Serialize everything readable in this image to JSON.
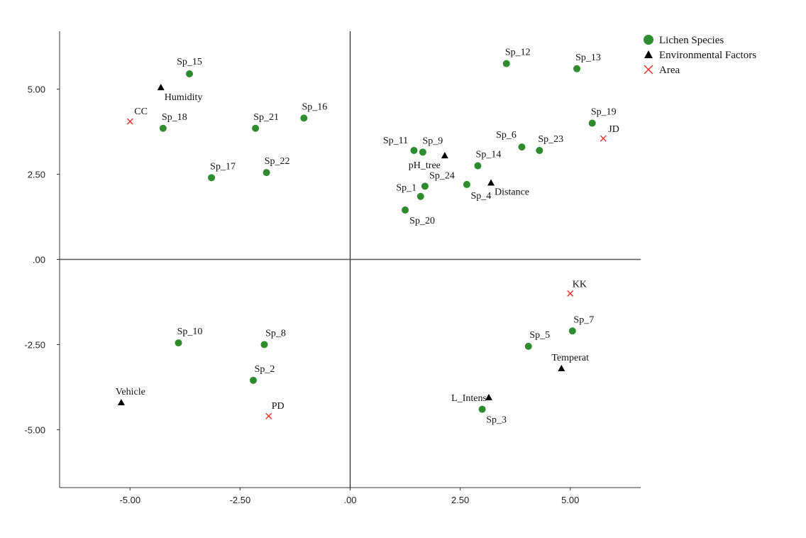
{
  "chart_data": {
    "type": "scatter",
    "title": "",
    "xlabel": "",
    "ylabel": "",
    "xlim": [
      -6.6,
      6.6
    ],
    "ylim": [
      -6.7,
      6.7
    ],
    "grid": false,
    "reference_lines": {
      "x": 0,
      "y": 0
    },
    "x_ticks": [
      {
        "value": -5,
        "label": "-5.00"
      },
      {
        "value": -2.5,
        "label": "-2.50"
      },
      {
        "value": 0,
        "label": ".00"
      },
      {
        "value": 2.5,
        "label": "2.50"
      },
      {
        "value": 5,
        "label": "5.00"
      }
    ],
    "y_ticks": [
      {
        "value": 5,
        "label": "5.00"
      },
      {
        "value": 2.5,
        "label": "2.50"
      },
      {
        "value": 0,
        "label": ".00"
      },
      {
        "value": -2.5,
        "label": "-2.50"
      },
      {
        "value": -5,
        "label": "-5.00"
      }
    ],
    "legend_position": "top-right",
    "series": [
      {
        "name": "Lichen Species",
        "marker": "circle",
        "color": "#2e8b2e",
        "points": [
          {
            "label": "Sp_15",
            "x": -3.65,
            "y": 5.45
          },
          {
            "label": "Sp_18",
            "x": -4.25,
            "y": 3.85
          },
          {
            "label": "Sp_21",
            "x": -2.15,
            "y": 3.85
          },
          {
            "label": "Sp_16",
            "x": -1.05,
            "y": 4.15
          },
          {
            "label": "Sp_17",
            "x": -3.15,
            "y": 2.4
          },
          {
            "label": "Sp_22",
            "x": -1.9,
            "y": 2.55
          },
          {
            "label": "Sp_12",
            "x": 3.55,
            "y": 5.75
          },
          {
            "label": "Sp_13",
            "x": 5.15,
            "y": 5.6
          },
          {
            "label": "Sp_19",
            "x": 5.5,
            "y": 4.0
          },
          {
            "label": "Sp_11",
            "x": 1.45,
            "y": 3.2
          },
          {
            "label": "Sp_9",
            "x": 1.65,
            "y": 3.15
          },
          {
            "label": "Sp_6",
            "x": 3.9,
            "y": 3.3
          },
          {
            "label": "Sp_23",
            "x": 4.3,
            "y": 3.2
          },
          {
            "label": "Sp_14",
            "x": 2.9,
            "y": 2.75
          },
          {
            "label": "Sp_24",
            "x": 1.7,
            "y": 2.15
          },
          {
            "label": "Sp_1",
            "x": 1.6,
            "y": 1.85
          },
          {
            "label": "Sp_4",
            "x": 2.65,
            "y": 2.2
          },
          {
            "label": "Sp_20",
            "x": 1.25,
            "y": 1.45
          },
          {
            "label": "Sp_10",
            "x": -3.9,
            "y": -2.45
          },
          {
            "label": "Sp_8",
            "x": -1.95,
            "y": -2.5
          },
          {
            "label": "Sp_2",
            "x": -2.2,
            "y": -3.55
          },
          {
            "label": "Sp_5",
            "x": 4.05,
            "y": -2.55
          },
          {
            "label": "Sp_7",
            "x": 5.05,
            "y": -2.1
          },
          {
            "label": "Sp_3",
            "x": 3.0,
            "y": -4.4
          }
        ]
      },
      {
        "name": "Environmental Factors",
        "marker": "triangle",
        "color": "#000000",
        "points": [
          {
            "label": "Humidity",
            "x": -4.3,
            "y": 5.05
          },
          {
            "label": "pH_tree",
            "x": 2.15,
            "y": 3.05
          },
          {
            "label": "Distance",
            "x": 3.2,
            "y": 2.25
          },
          {
            "label": "Temperat",
            "x": 4.8,
            "y": -3.2
          },
          {
            "label": "L_Intens",
            "x": 3.15,
            "y": -4.05
          },
          {
            "label": "Vehicle",
            "x": -5.2,
            "y": -4.2
          }
        ]
      },
      {
        "name": "Area",
        "marker": "cross",
        "color": "#e8302a",
        "points": [
          {
            "label": "CC",
            "x": -5.0,
            "y": 4.05
          },
          {
            "label": "JD",
            "x": 5.75,
            "y": 3.55
          },
          {
            "label": "KK",
            "x": 5.0,
            "y": -1.0
          },
          {
            "label": "PD",
            "x": -1.85,
            "y": -4.6
          }
        ]
      }
    ]
  }
}
